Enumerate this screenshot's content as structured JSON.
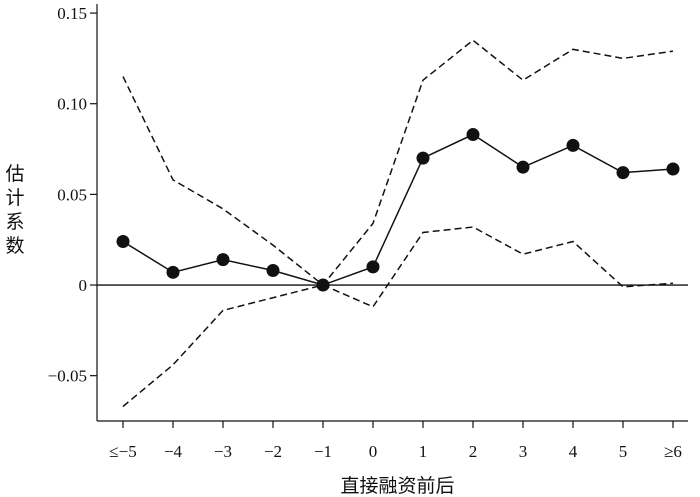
{
  "chart_data": {
    "type": "line",
    "title": "",
    "xlabel": "直接融资前后",
    "ylabel": "估计系数",
    "categories": [
      "≤−5",
      "−4",
      "−3",
      "−2",
      "−1",
      "0",
      "1",
      "2",
      "3",
      "4",
      "5",
      "≥6"
    ],
    "ylim": [
      -0.075,
      0.155
    ],
    "yticks": [
      {
        "value": 0.15,
        "label": "0.15"
      },
      {
        "value": 0.1,
        "label": "0.10"
      },
      {
        "value": 0.05,
        "label": "0.05"
      },
      {
        "value": 0,
        "label": "0"
      },
      {
        "value": -0.05,
        "label": "−0.05"
      }
    ],
    "grid": false,
    "legend": "none",
    "zero_line": true,
    "series": [
      {
        "role": "estimate",
        "style": "solid-with-markers",
        "color": "#111111",
        "values": [
          0.024,
          0.007,
          0.014,
          0.008,
          0.0,
          0.01,
          0.07,
          0.083,
          0.065,
          0.077,
          0.062,
          0.064
        ]
      },
      {
        "role": "upper-bound",
        "style": "dashed",
        "color": "#111111",
        "values": [
          0.115,
          0.058,
          0.042,
          0.022,
          0.0,
          0.034,
          0.113,
          0.135,
          0.113,
          0.13,
          0.125,
          0.129
        ]
      },
      {
        "role": "lower-bound",
        "style": "dashed",
        "color": "#111111",
        "values": [
          -0.067,
          -0.044,
          -0.014,
          -0.007,
          0.0,
          -0.012,
          0.029,
          0.032,
          0.017,
          0.024,
          -0.001,
          0.001
        ]
      }
    ]
  }
}
